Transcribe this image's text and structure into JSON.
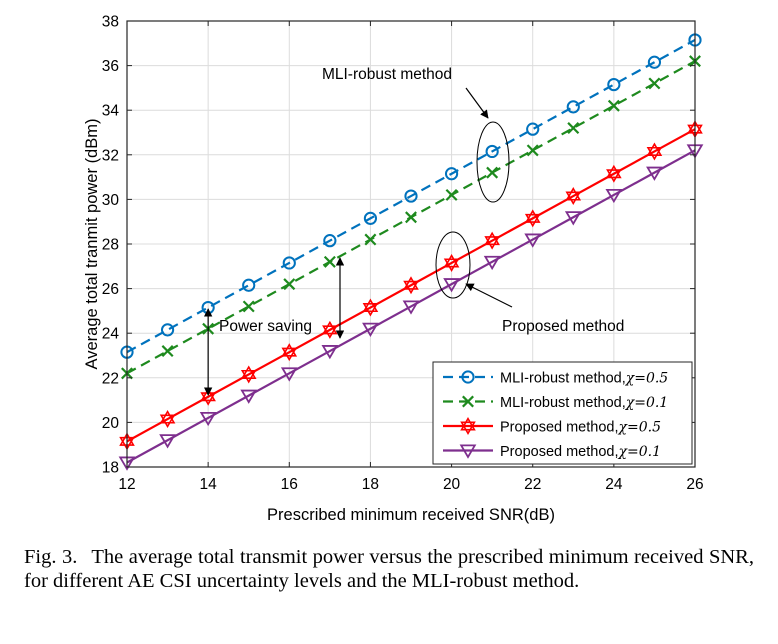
{
  "chart_data": {
    "type": "line",
    "xlabel": "Prescribed minimum received SNR(dB)",
    "ylabel": "Average total tranmit power (dBm)",
    "xlim": [
      12,
      26
    ],
    "ylim": [
      18,
      38
    ],
    "xticks": [
      12,
      14,
      16,
      18,
      20,
      22,
      24,
      26
    ],
    "yticks": [
      18,
      20,
      22,
      24,
      26,
      28,
      30,
      32,
      34,
      36,
      38
    ],
    "grid": true,
    "legend_position": "bottom-right",
    "x": [
      12,
      13,
      14,
      15,
      16,
      17,
      18,
      19,
      20,
      21,
      22,
      23,
      24,
      25,
      26
    ],
    "series": [
      {
        "name": "MLI-robust method,",
        "chi": "χ=0.5",
        "color": "#0072BD",
        "marker": "circle",
        "dash": "dashed",
        "values": [
          23.15,
          24.15,
          25.15,
          26.15,
          27.15,
          28.15,
          29.15,
          30.15,
          31.15,
          32.15,
          33.15,
          34.15,
          35.15,
          36.15,
          37.15
        ]
      },
      {
        "name": "MLI-robust method,",
        "chi": "χ=0.1",
        "color": "#1E8A1E",
        "marker": "x",
        "dash": "dashed",
        "values": [
          22.2,
          23.2,
          24.2,
          25.2,
          26.2,
          27.2,
          28.2,
          29.2,
          30.2,
          31.2,
          32.2,
          33.2,
          34.2,
          35.2,
          36.2
        ]
      },
      {
        "name": "Proposed method,",
        "chi": "χ=0.5",
        "color": "#FF0000",
        "marker": "hexagram",
        "dash": "solid",
        "values": [
          19.15,
          20.15,
          21.15,
          22.15,
          23.15,
          24.15,
          25.15,
          26.15,
          27.15,
          28.15,
          29.15,
          30.15,
          31.15,
          32.15,
          33.15
        ]
      },
      {
        "name": "Proposed method,",
        "chi": "χ=0.1",
        "color": "#7E2F8E",
        "marker": "triangle-down",
        "dash": "solid",
        "values": [
          18.2,
          19.2,
          20.2,
          21.2,
          22.2,
          23.2,
          24.2,
          25.2,
          26.2,
          27.2,
          28.2,
          29.2,
          30.2,
          31.2,
          32.2
        ]
      }
    ],
    "annotations": [
      "MLI-robust method",
      "Proposed method",
      "Power saving"
    ]
  },
  "caption": {
    "label": "Fig. 3.",
    "text": "The average total transmit power versus the prescribed minimum received SNR, for different AE CSI uncertainty levels and the MLI-robust method."
  }
}
